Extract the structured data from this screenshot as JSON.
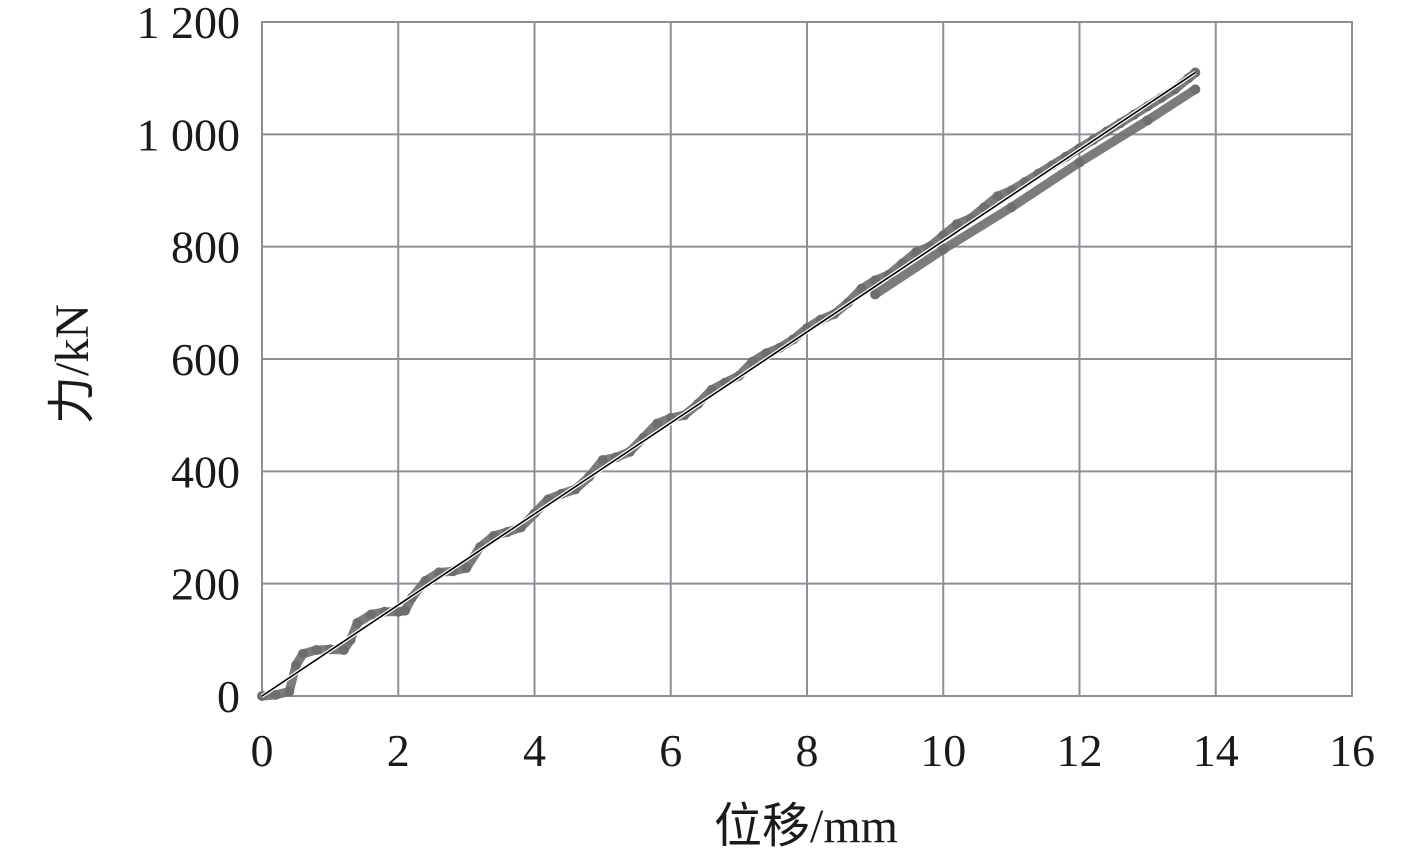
{
  "chart_data": {
    "type": "scatter",
    "title": "",
    "xlabel": "位移/mm",
    "ylabel": "力/kN",
    "xlim": [
      0,
      16
    ],
    "ylim": [
      0,
      1200
    ],
    "x_ticks": [
      0,
      2,
      4,
      6,
      8,
      10,
      12,
      14,
      16
    ],
    "y_ticks": [
      0,
      200,
      400,
      600,
      800,
      1000,
      1200
    ],
    "x_tick_labels": [
      "0",
      "2",
      "4",
      "6",
      "8",
      "10",
      "12",
      "14",
      "16"
    ],
    "y_tick_labels": [
      "0",
      "200",
      "400",
      "600",
      "800",
      "1 000",
      "1 200"
    ],
    "grid": true,
    "legend": "none",
    "colors": {
      "measured": "#6e6e6e",
      "fit": "#000000",
      "grid": "#8a9096"
    },
    "series": [
      {
        "kind": "scatter",
        "x": [
          0.0,
          0.2,
          0.4,
          0.5,
          0.6,
          0.8,
          1.0,
          1.2,
          1.3,
          1.4,
          1.6,
          1.8,
          2.0,
          2.1,
          2.2,
          2.4,
          2.6,
          2.8,
          3.0,
          3.2,
          3.4,
          3.6,
          3.8,
          4.0,
          4.2,
          4.4,
          4.6,
          4.8,
          5.0,
          5.2,
          5.4,
          5.6,
          5.8,
          6.0,
          6.2,
          6.4,
          6.6,
          6.8,
          7.0,
          7.2,
          7.4,
          7.6,
          7.8,
          8.0,
          8.2,
          8.4,
          8.6,
          8.8,
          9.0,
          9.2,
          9.4,
          9.6,
          9.8,
          10.0,
          10.2,
          10.4,
          10.6,
          10.8,
          11.0,
          11.2,
          11.4,
          11.6,
          11.8,
          12.0,
          12.2,
          12.4,
          12.6,
          12.8,
          13.0,
          13.2,
          13.4,
          13.6,
          13.7
        ],
        "y": [
          0,
          2,
          8,
          55,
          75,
          82,
          83,
          82,
          100,
          130,
          145,
          150,
          150,
          152,
          175,
          205,
          220,
          222,
          228,
          265,
          285,
          292,
          300,
          325,
          350,
          360,
          368,
          390,
          420,
          425,
          435,
          460,
          485,
          495,
          500,
          520,
          545,
          558,
          570,
          595,
          610,
          620,
          635,
          655,
          670,
          680,
          700,
          725,
          740,
          750,
          770,
          790,
          800,
          820,
          840,
          850,
          870,
          890,
          900,
          915,
          930,
          945,
          960,
          975,
          990,
          1005,
          1020,
          1035,
          1050,
          1065,
          1080,
          1100,
          1110
        ]
      },
      {
        "kind": "scatter",
        "x": [
          9.0,
          10.0,
          11.0,
          12.0,
          13.0,
          13.7
        ],
        "y": [
          715,
          795,
          870,
          950,
          1025,
          1080
        ]
      },
      {
        "kind": "line",
        "x": [
          0.0,
          13.7
        ],
        "y": [
          0,
          1110
        ]
      }
    ]
  }
}
